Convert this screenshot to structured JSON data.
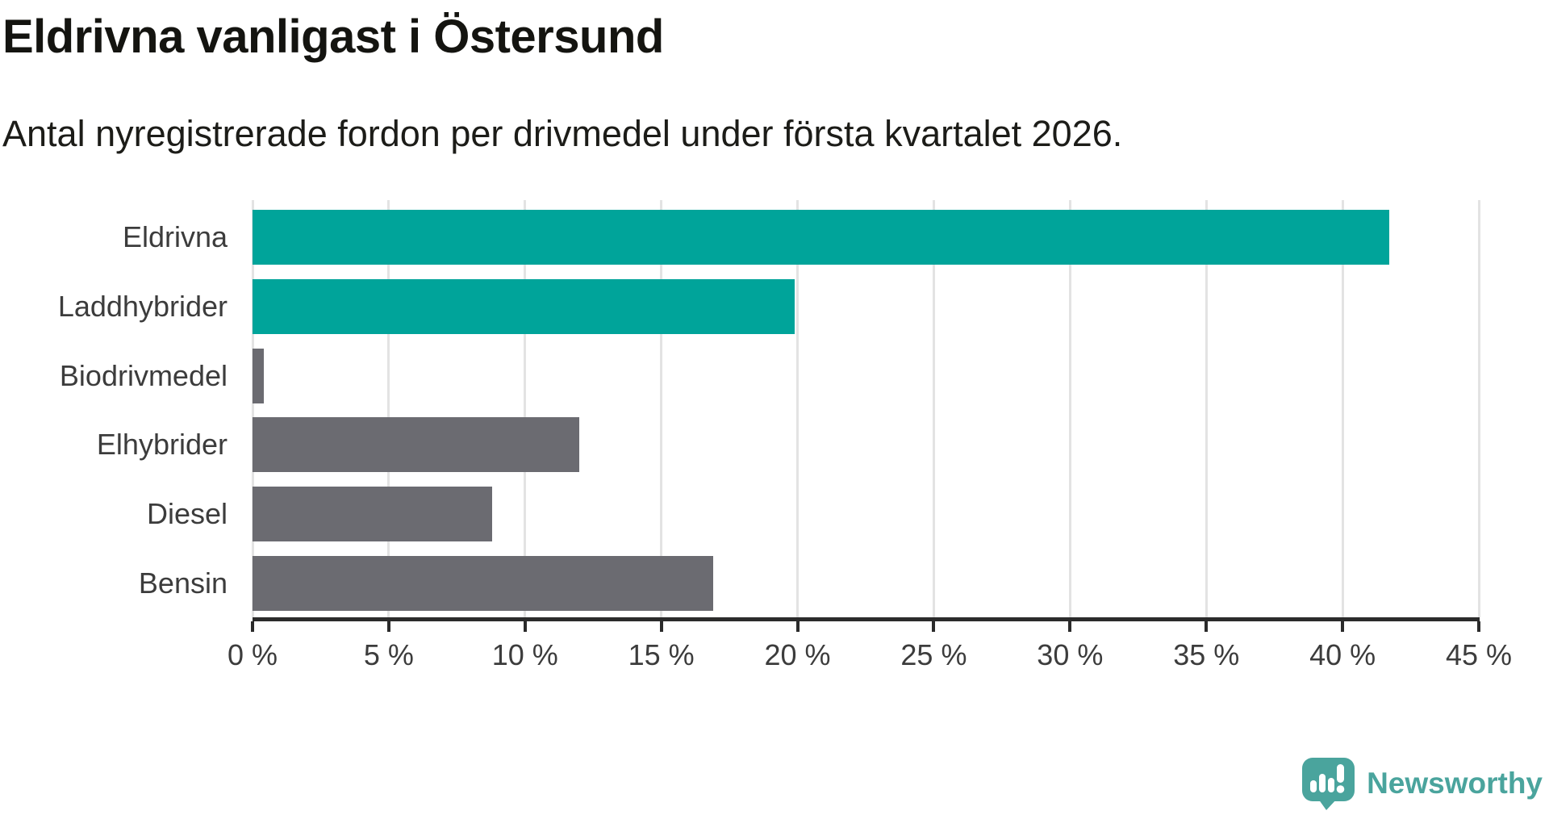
{
  "title": "Eldrivna vanligast i Östersund",
  "subtitle": "Antal nyregistrerade fordon per drivmedel under första kvartalet 2026.",
  "chart_data": {
    "type": "bar",
    "orientation": "horizontal",
    "title": "Eldrivna vanligast i Östersund",
    "subtitle": "Antal nyregistrerade fordon per drivmedel under första kvartalet 2026.",
    "categories": [
      "Eldrivna",
      "Laddhybrider",
      "Biodrivmedel",
      "Elhybrider",
      "Diesel",
      "Bensin"
    ],
    "values": [
      41.7,
      19.9,
      0.4,
      12.0,
      8.8,
      16.9
    ],
    "unit": "%",
    "bar_colors": [
      "#00a49a",
      "#00a49a",
      "#6b6b71",
      "#6b6b71",
      "#6b6b71",
      "#6b6b71"
    ],
    "xlim": [
      0,
      45
    ],
    "x_ticks": [
      0,
      5,
      10,
      15,
      20,
      25,
      30,
      35,
      40,
      45
    ],
    "x_tick_suffix": " %",
    "grid": "vertical-gridlines-every-5-percent",
    "legend": "none"
  },
  "colors": {
    "accent_teal": "#00a49a",
    "bar_grey": "#6b6b71",
    "gridline": "#e3e3e3",
    "axis": "#2b2b2b",
    "title_text": "#141410",
    "label_text": "#3c3c3c",
    "logo_teal": "#4aa49d"
  },
  "branding": {
    "logo_text": "Newsworthy",
    "logo_icon": "speech-bubble-with-bar-chart-and-exclamation"
  }
}
